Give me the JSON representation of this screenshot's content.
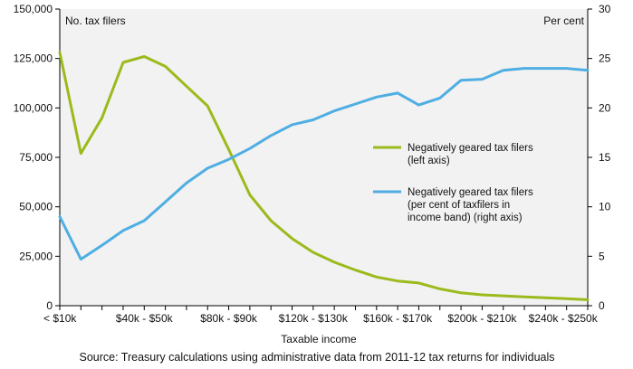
{
  "chart_data": {
    "type": "line",
    "left_axis_label": "No. tax filers",
    "right_axis_label": "Per cent",
    "xlabel": "Taxable income",
    "left_ylim": [
      0,
      150000
    ],
    "right_ylim": [
      0,
      30
    ],
    "left_ticks": [
      "0",
      "25,000",
      "50,000",
      "75,000",
      "100,000",
      "125,000",
      "150,000"
    ],
    "right_ticks": [
      "0",
      "5",
      "10",
      "15",
      "20",
      "25",
      "30"
    ],
    "x_tick_labels": [
      "< $10k",
      "$40k - $50k",
      "$80k - $90k",
      "$120k - $130k",
      "$160k - $170k",
      "$200k - $210k",
      "$240k - $250k"
    ],
    "x_tick_positions": [
      0,
      4,
      8,
      12,
      16,
      20,
      24
    ],
    "grid": false,
    "x": [
      0,
      1,
      2,
      3,
      4,
      5,
      6,
      7,
      8,
      9,
      10,
      11,
      12,
      13,
      14,
      15,
      16,
      17,
      18,
      19,
      20,
      21,
      22,
      23,
      24,
      25
    ],
    "series": [
      {
        "name": "Negatively geared tax filers (left axis)",
        "legend_lines": [
          "Negatively geared tax filers",
          "(left axis)"
        ],
        "axis": "left",
        "color": "#9bba1c",
        "values": [
          128000,
          77000,
          95000,
          123000,
          126000,
          121000,
          111000,
          101000,
          79000,
          56000,
          43000,
          34000,
          27000,
          22000,
          18000,
          14500,
          12500,
          11500,
          8500,
          6500,
          5500,
          5000,
          4500,
          4000,
          3500,
          3000
        ]
      },
      {
        "name": "Negatively geared tax filers (per cent of taxfilers in income band) (right axis)",
        "legend_lines": [
          "Negatively geared tax filers",
          "(per cent of taxfilers in",
          "income band) (right axis)"
        ],
        "axis": "right",
        "color": "#4faee2",
        "values": [
          9.0,
          4.7,
          6.1,
          7.6,
          8.6,
          10.5,
          12.4,
          13.9,
          14.8,
          15.9,
          17.2,
          18.3,
          18.8,
          19.7,
          20.4,
          21.1,
          21.5,
          20.3,
          21.0,
          22.8,
          22.9,
          23.8,
          24.0,
          24.0,
          24.0,
          23.8
        ]
      }
    ]
  },
  "source_text": "Source: Treasury calculations using administrative data from 2011-12 tax returns for individuals"
}
